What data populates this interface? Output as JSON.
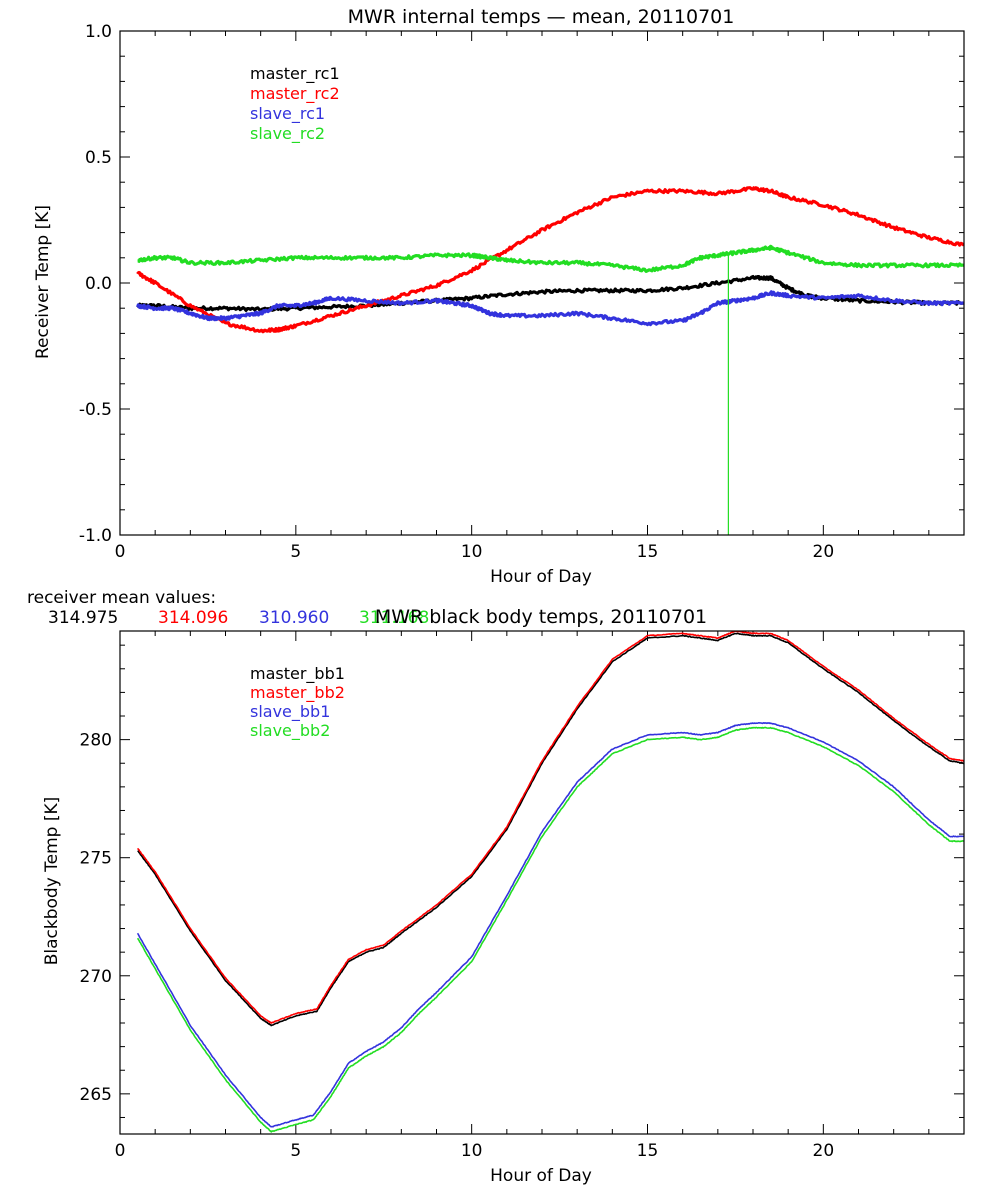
{
  "chart_data": [
    {
      "type": "line",
      "title": "MWR internal temps — mean, 20110701",
      "xlabel": "Hour of Day",
      "ylabel": "Receiver Temp [K]",
      "xlim": [
        0,
        24
      ],
      "ylim": [
        -1.0,
        1.0
      ],
      "xticks": [
        "0",
        "5",
        "10",
        "15",
        "20"
      ],
      "yticks": [
        "1.0",
        "0.5",
        "0.0",
        "-0.5",
        "-1.0"
      ],
      "legend_position": "top-left",
      "grid": false,
      "series": [
        {
          "name": "master_rc1",
          "color": "#000000",
          "x": [
            0.5,
            1,
            2,
            3,
            4,
            5,
            6,
            7,
            8,
            9,
            10,
            11,
            12,
            13,
            14,
            15,
            16,
            17,
            18,
            18.5,
            19,
            19.5,
            20,
            21,
            22,
            23,
            24
          ],
          "y": [
            -0.09,
            -0.09,
            -0.1,
            -0.1,
            -0.105,
            -0.1,
            -0.095,
            -0.09,
            -0.08,
            -0.07,
            -0.06,
            -0.045,
            -0.035,
            -0.03,
            -0.03,
            -0.03,
            -0.02,
            0.0,
            0.02,
            0.02,
            -0.02,
            -0.05,
            -0.06,
            -0.07,
            -0.075,
            -0.08,
            -0.08
          ]
        },
        {
          "name": "master_rc2",
          "color": "#ff0000",
          "x": [
            0.5,
            1,
            2,
            3,
            4,
            4.5,
            5,
            6,
            7,
            8,
            9,
            10,
            11,
            12,
            13,
            14,
            15,
            16,
            17,
            18,
            18.5,
            19,
            20,
            21,
            22,
            23,
            24
          ],
          "y": [
            0.04,
            0.0,
            -0.09,
            -0.16,
            -0.19,
            -0.185,
            -0.17,
            -0.13,
            -0.09,
            -0.05,
            -0.01,
            0.05,
            0.13,
            0.21,
            0.28,
            0.34,
            0.365,
            0.365,
            0.355,
            0.375,
            0.365,
            0.34,
            0.31,
            0.27,
            0.22,
            0.18,
            0.15
          ]
        },
        {
          "name": "slave_rc1",
          "color": "#3333dd",
          "x": [
            0.5,
            1,
            1.5,
            2,
            2.5,
            3,
            3.5,
            4,
            4.5,
            5,
            5.5,
            6,
            7,
            8,
            9,
            9.5,
            10,
            10.5,
            11,
            12,
            13,
            14,
            15,
            16,
            16.5,
            17,
            17.5,
            18,
            18.5,
            19,
            20,
            21,
            22,
            23,
            24
          ],
          "y": [
            -0.09,
            -0.1,
            -0.1,
            -0.12,
            -0.14,
            -0.14,
            -0.13,
            -0.12,
            -0.09,
            -0.09,
            -0.08,
            -0.06,
            -0.07,
            -0.08,
            -0.07,
            -0.08,
            -0.09,
            -0.12,
            -0.13,
            -0.13,
            -0.12,
            -0.14,
            -0.16,
            -0.15,
            -0.12,
            -0.08,
            -0.07,
            -0.06,
            -0.04,
            -0.05,
            -0.06,
            -0.05,
            -0.07,
            -0.08,
            -0.08
          ]
        },
        {
          "name": "slave_rc2",
          "color": "#22dd22",
          "x": [
            0.5,
            1,
            1.5,
            2,
            3,
            4,
            5,
            6,
            7,
            8,
            9,
            10,
            10.5,
            11,
            12,
            13,
            14,
            15,
            16,
            16.5,
            17,
            17.5,
            18,
            18.5,
            19,
            20,
            21,
            22,
            23,
            24
          ],
          "y": [
            0.09,
            0.1,
            0.1,
            0.08,
            0.08,
            0.09,
            0.1,
            0.1,
            0.1,
            0.1,
            0.11,
            0.11,
            0.1,
            0.09,
            0.08,
            0.08,
            0.07,
            0.05,
            0.07,
            0.1,
            0.11,
            0.12,
            0.13,
            0.14,
            0.12,
            0.08,
            0.07,
            0.07,
            0.07,
            0.07
          ]
        }
      ],
      "annotations": [
        {
          "type": "vertical_spike",
          "series": "slave_rc2",
          "x": 17.3,
          "from_y": 0.12,
          "to_y": -1.0
        }
      ],
      "mean_values_label": "receiver mean values:",
      "mean_values": [
        {
          "value": "314.975",
          "color": "#000000"
        },
        {
          "value": "314.096",
          "color": "#ff0000"
        },
        {
          "value": "310.960",
          "color": "#3333dd"
        },
        {
          "value": "311.168",
          "color": "#22dd22"
        }
      ]
    },
    {
      "type": "line",
      "title": "MWR black body temps, 20110701",
      "xlabel": "Hour of Day",
      "ylabel": "Blackbody Temp [K]",
      "xlim": [
        0,
        24
      ],
      "ylim": [
        263.3,
        284.6
      ],
      "xticks": [
        "0",
        "5",
        "10",
        "15",
        "20"
      ],
      "yticks": [
        "265",
        "270",
        "275",
        "280"
      ],
      "legend_position": "top-left",
      "grid": false,
      "series": [
        {
          "name": "master_bb1",
          "color": "#000000",
          "x": [
            0.5,
            1,
            2,
            3,
            4,
            4.3,
            5,
            5.6,
            6,
            6.5,
            7,
            7.5,
            8,
            9,
            10,
            11,
            12,
            13,
            14,
            15,
            16,
            16.5,
            17,
            17.5,
            18,
            18.5,
            19,
            20,
            21,
            22,
            23,
            23.6,
            24
          ],
          "y": [
            275.3,
            274.3,
            271.9,
            269.8,
            268.2,
            267.9,
            268.3,
            268.5,
            269.5,
            270.6,
            271.0,
            271.2,
            271.8,
            272.9,
            274.2,
            276.2,
            279.0,
            281.3,
            283.3,
            284.3,
            284.4,
            284.3,
            284.2,
            284.5,
            284.4,
            284.4,
            284.1,
            283.0,
            282.0,
            280.8,
            279.7,
            279.1,
            279.0
          ]
        },
        {
          "name": "master_bb2",
          "color": "#ff0000",
          "x": [
            0.5,
            1,
            2,
            3,
            4,
            4.3,
            5,
            5.6,
            6,
            6.5,
            7,
            7.5,
            8,
            9,
            10,
            11,
            12,
            13,
            14,
            15,
            16,
            16.5,
            17,
            17.5,
            18,
            18.5,
            19,
            20,
            21,
            22,
            23,
            23.6,
            24
          ],
          "y": [
            275.4,
            274.4,
            272.0,
            269.9,
            268.3,
            268.0,
            268.4,
            268.6,
            269.6,
            270.7,
            271.1,
            271.3,
            271.9,
            273.0,
            274.3,
            276.3,
            279.1,
            281.4,
            283.4,
            284.4,
            284.5,
            284.4,
            284.3,
            284.6,
            284.5,
            284.5,
            284.2,
            283.1,
            282.1,
            280.9,
            279.8,
            279.2,
            279.1
          ]
        },
        {
          "name": "slave_bb1",
          "color": "#3333dd",
          "x": [
            0.5,
            1,
            2,
            3,
            4,
            4.3,
            5,
            5.5,
            6,
            6.5,
            7,
            7.5,
            8,
            8.5,
            9,
            10,
            11,
            12,
            13,
            13.5,
            14,
            15,
            16,
            16.5,
            17,
            17.5,
            18,
            18.5,
            19,
            20,
            21,
            22,
            23,
            23.6,
            24
          ],
          "y": [
            271.8,
            270.5,
            267.9,
            265.8,
            264.0,
            263.6,
            263.9,
            264.1,
            265.1,
            266.3,
            266.8,
            267.2,
            267.8,
            268.6,
            269.3,
            270.8,
            273.4,
            276.1,
            278.2,
            278.9,
            279.6,
            280.2,
            280.3,
            280.2,
            280.3,
            280.6,
            280.7,
            280.7,
            280.5,
            279.9,
            279.1,
            278.0,
            276.6,
            275.9,
            275.9
          ]
        },
        {
          "name": "slave_bb2",
          "color": "#22dd22",
          "x": [
            0.5,
            1,
            2,
            3,
            4,
            4.3,
            5,
            5.5,
            6,
            6.5,
            7,
            7.5,
            8,
            8.5,
            9,
            10,
            11,
            12,
            13,
            13.5,
            14,
            15,
            16,
            16.5,
            17,
            17.5,
            18,
            18.5,
            19,
            20,
            21,
            22,
            23,
            23.6,
            24
          ],
          "y": [
            271.6,
            270.3,
            267.7,
            265.6,
            263.8,
            263.4,
            263.7,
            263.9,
            264.9,
            266.1,
            266.6,
            267.0,
            267.6,
            268.4,
            269.1,
            270.6,
            273.2,
            275.9,
            278.0,
            278.7,
            279.4,
            280.0,
            280.1,
            280.0,
            280.1,
            280.4,
            280.5,
            280.5,
            280.3,
            279.7,
            278.9,
            277.8,
            276.4,
            275.7,
            275.7
          ]
        }
      ]
    }
  ]
}
